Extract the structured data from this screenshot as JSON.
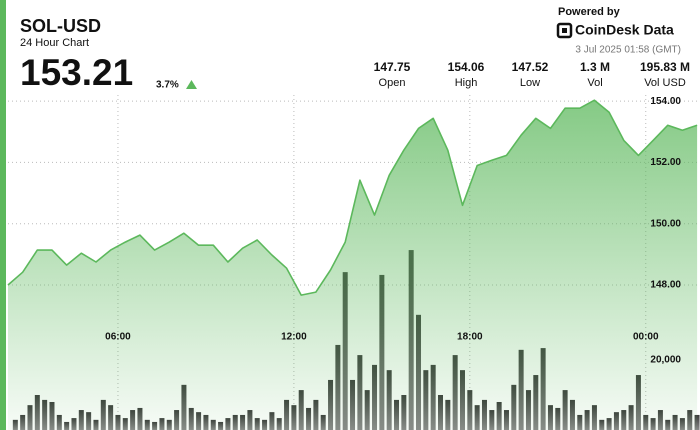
{
  "header": {
    "symbol": "SOL-USD",
    "subtitle": "24 Hour Chart",
    "price": "153.21",
    "change": "3.7%",
    "powered_by": "Powered by",
    "brand": "CoinDesk Data",
    "timestamp": "3 Jul 2025 01:58 (GMT)",
    "stats": [
      {
        "value": "147.75",
        "label": "Open"
      },
      {
        "value": "154.06",
        "label": "High"
      },
      {
        "value": "147.52",
        "label": "Low"
      },
      {
        "value": "1.3 M",
        "label": "Vol"
      },
      {
        "value": "195.83 M",
        "label": "Vol USD"
      }
    ]
  },
  "chart_data": {
    "type": "line",
    "grid": true,
    "xlim": [
      2.25,
      25.85
    ],
    "xticks": [
      {
        "value": 6,
        "label": "06:00"
      },
      {
        "value": 12,
        "label": "12:00"
      },
      {
        "value": 18,
        "label": "18:00"
      },
      {
        "value": 24,
        "label": "00:00"
      }
    ],
    "ylim": [
      143.27,
      154.2
    ],
    "yticks": [
      {
        "value": 148,
        "label": "148.00"
      },
      {
        "value": 150,
        "label": "150.00"
      },
      {
        "value": 152,
        "label": "152.00"
      },
      {
        "value": 154,
        "label": "154.00"
      }
    ],
    "y2lim": [
      0,
      95700
    ],
    "y2ticks": [
      {
        "value": 20000,
        "label": "20,000"
      }
    ],
    "series": [
      {
        "type": "bar",
        "axis": "y2",
        "color": "#4a4a4a",
        "x": [
          2.5,
          2.75,
          3,
          3.25,
          3.5,
          3.75,
          4,
          4.25,
          4.5,
          4.75,
          5,
          5.25,
          5.5,
          5.75,
          6,
          6.25,
          6.5,
          6.75,
          7,
          7.25,
          7.5,
          7.75,
          8,
          8.25,
          8.5,
          8.75,
          9,
          9.25,
          9.5,
          9.75,
          10,
          10.25,
          10.5,
          10.75,
          11,
          11.25,
          11.5,
          11.75,
          12,
          12.25,
          12.5,
          12.75,
          13,
          13.25,
          13.5,
          13.75,
          14,
          14.25,
          14.5,
          14.75,
          15,
          15.25,
          15.5,
          15.75,
          16,
          16.25,
          16.5,
          16.75,
          17,
          17.25,
          17.5,
          17.75,
          18,
          18.25,
          18.5,
          18.75,
          19,
          19.25,
          19.5,
          19.75,
          20,
          20.25,
          20.5,
          20.75,
          21,
          21.25,
          21.5,
          21.75,
          22,
          22.25,
          22.5,
          22.75,
          23,
          23.25,
          23.5,
          23.75,
          24,
          24.25,
          24.5,
          24.75,
          25,
          25.25,
          25.5,
          25.75
        ],
        "values": [
          2900,
          4300,
          7100,
          10000,
          8600,
          8000,
          4300,
          2300,
          3400,
          5700,
          5100,
          2900,
          8600,
          7100,
          4300,
          3400,
          5700,
          6300,
          2900,
          2300,
          3400,
          2900,
          5700,
          12900,
          6300,
          5100,
          4300,
          2900,
          2300,
          3400,
          4300,
          4300,
          5700,
          3400,
          2900,
          5100,
          3400,
          8600,
          7100,
          11400,
          6300,
          8600,
          4300,
          14300,
          24300,
          45100,
          14300,
          21400,
          11400,
          18600,
          44300,
          17100,
          8600,
          10000,
          51400,
          32900,
          17100,
          18600,
          10000,
          8600,
          21400,
          17100,
          11400,
          7100,
          8600,
          5700,
          8000,
          5700,
          12900,
          22900,
          11400,
          15700,
          23400,
          7100,
          6300,
          11400,
          8600,
          4300,
          5700,
          7100,
          2900,
          3400,
          5100,
          5700,
          7100,
          15700,
          4300,
          3400,
          5700,
          2900,
          4300,
          3400,
          5700,
          4300
        ]
      },
      {
        "type": "line",
        "color": "#5cb85c",
        "x": [
          2.25,
          2.75,
          3.25,
          3.75,
          4.25,
          4.75,
          5.25,
          5.75,
          6.25,
          6.75,
          7.25,
          7.75,
          8.25,
          8.75,
          9.25,
          9.75,
          10.25,
          10.75,
          11.25,
          11.75,
          12.25,
          12.75,
          13.25,
          13.75,
          14.25,
          14.75,
          15.25,
          15.75,
          16.25,
          16.75,
          17.25,
          17.75,
          18.25,
          18.75,
          19.25,
          19.75,
          20.25,
          20.75,
          21.25,
          21.75,
          22.25,
          22.75,
          23.25,
          23.75,
          24.25,
          24.75,
          25.25,
          25.75
        ],
        "values": [
          148.0,
          148.42,
          149.14,
          149.14,
          148.65,
          149.04,
          148.75,
          149.14,
          149.4,
          149.63,
          149.14,
          149.4,
          149.69,
          149.3,
          149.3,
          148.75,
          149.2,
          149.47,
          148.98,
          148.55,
          147.67,
          147.77,
          148.49,
          149.4,
          151.42,
          150.28,
          151.58,
          152.4,
          153.11,
          153.44,
          152.4,
          150.6,
          151.9,
          152.07,
          152.23,
          152.89,
          153.44,
          153.11,
          153.77,
          153.77,
          154.03,
          153.64,
          152.72,
          152.23,
          152.72,
          153.21,
          153.05,
          153.21
        ]
      }
    ]
  }
}
